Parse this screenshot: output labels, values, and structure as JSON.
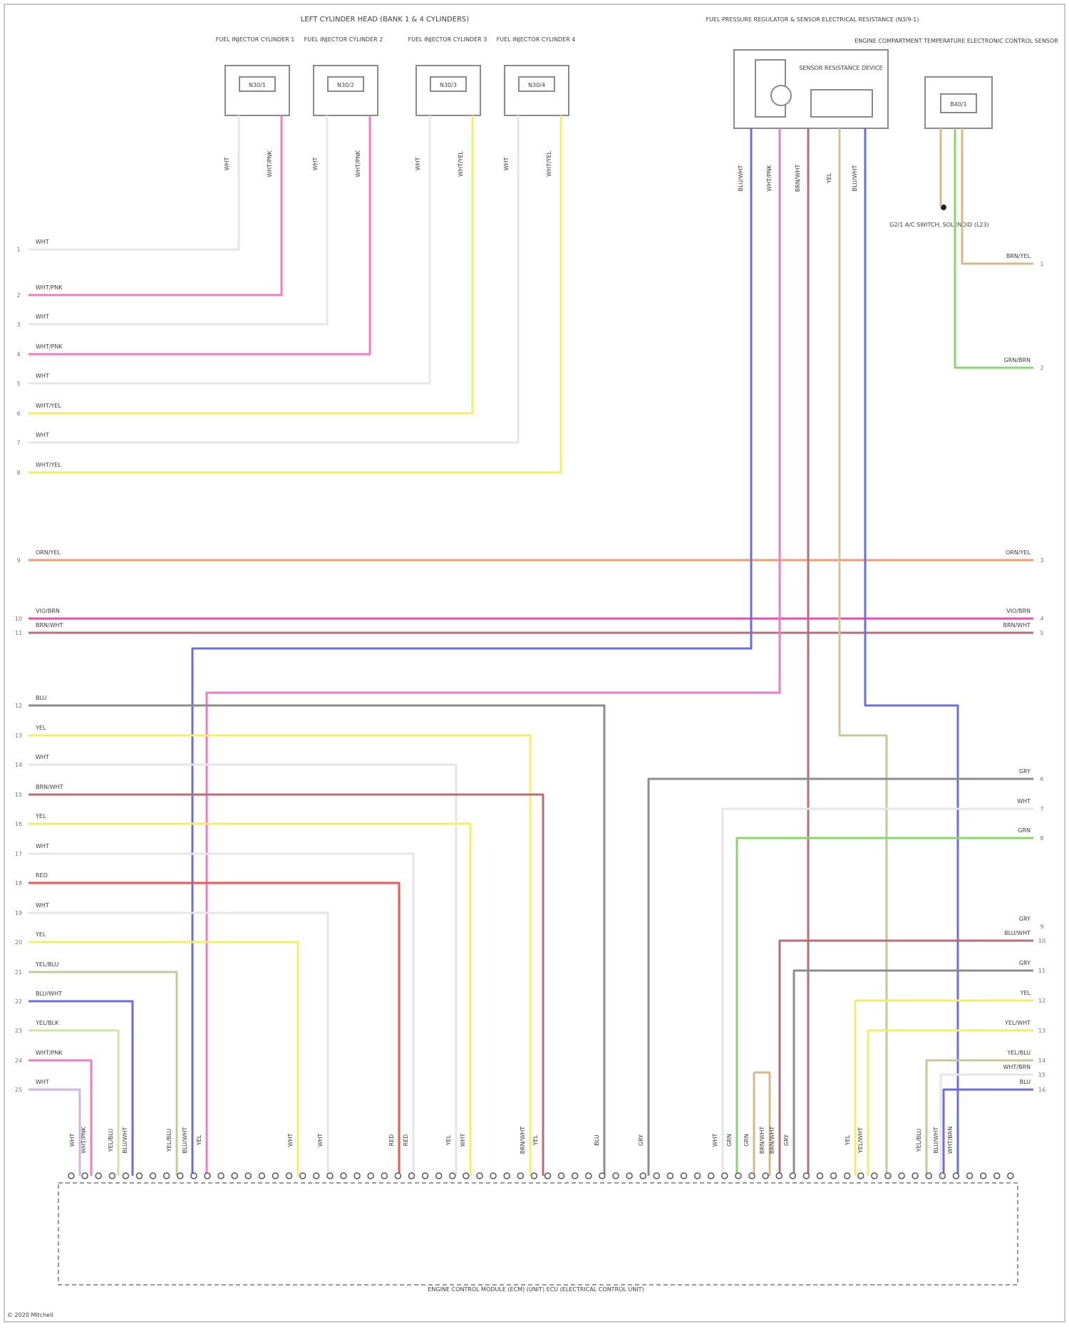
{
  "title_top": "LEFT CYLINDER HEAD (BANK 1 & 4 CYLINDERS)",
  "injectors": [
    {
      "label": "FUEL INJECTOR CYLINDER 1",
      "code": "N30/1"
    },
    {
      "label": "FUEL INJECTOR CYLINDER 2",
      "code": "N30/2"
    },
    {
      "label": "FUEL INJECTOR CYLINDER 3",
      "code": "N30/3"
    },
    {
      "label": "FUEL INJECTOR CYLINDER 4",
      "code": "N30/4"
    }
  ],
  "right_component": {
    "label": "FUEL PRESSURE REGULATOR & SENSOR ELECTRICAL RESISTANCE (N3/9-1)",
    "inner": "SENSOR RESISTANCE DEVICE"
  },
  "far_right_component": {
    "label": "ENGINE COMPARTMENT TEMPERATURE ELECTRONIC CONTROL SENSOR",
    "inner": "B40/1",
    "ground_note": "G2/1 A/C SWITCH, SOLENOID (L23)"
  },
  "ecu_label": "ENGINE CONTROL MODULE (ECM) (UNIT) ECU (ELECTRICAL CONTROL UNIT)",
  "footer": "© 2020 Mitchell",
  "wire_colors": {
    "white": "#e6e6e6",
    "pink": "#f27cc4",
    "yellow": "#f2ee6a",
    "orange": "#f59a70",
    "magenta": "#ea4fb0",
    "brown": "#b86e78",
    "blue": "#6b6ee0",
    "gray": "#8c8c8c",
    "red": "#e85a5a",
    "green": "#8ad66e",
    "olive": "#c9c79a",
    "lightgreen": "#cde6a8",
    "tan": "#d7b88a",
    "lavender": "#cfb4e6"
  },
  "left_wires": [
    {
      "num": "1",
      "label": "WHT",
      "color": "white"
    },
    {
      "num": "2",
      "label": "WHT/PNK",
      "color": "pink"
    },
    {
      "num": "3",
      "label": "WHT",
      "color": "white"
    },
    {
      "num": "4",
      "label": "WHT/PNK",
      "color": "pink"
    },
    {
      "num": "5",
      "label": "WHT",
      "color": "white"
    },
    {
      "num": "6",
      "label": "WHT/YEL",
      "color": "yellow"
    },
    {
      "num": "7",
      "label": "WHT",
      "color": "white"
    },
    {
      "num": "8",
      "label": "WHT/YEL",
      "color": "yellow"
    },
    {
      "num": "9",
      "label": "ORN/YEL",
      "color": "orange"
    },
    {
      "num": "10",
      "label": "VIO/BRN",
      "color": "magenta"
    },
    {
      "num": "11",
      "label": "BRN/WHT",
      "color": "brown"
    },
    {
      "num": "12",
      "label": "BLU",
      "color": "gray"
    },
    {
      "num": "13",
      "label": "YEL",
      "color": "yellow"
    },
    {
      "num": "14",
      "label": "WHT",
      "color": "white"
    },
    {
      "num": "15",
      "label": "BRN/WHT",
      "color": "brown"
    },
    {
      "num": "16",
      "label": "YEL",
      "color": "yellow"
    },
    {
      "num": "17",
      "label": "WHT",
      "color": "white"
    },
    {
      "num": "18",
      "label": "RED",
      "color": "red"
    },
    {
      "num": "19",
      "label": "WHT",
      "color": "white"
    },
    {
      "num": "20",
      "label": "YEL",
      "color": "yellow"
    },
    {
      "num": "21",
      "label": "YEL/BLU",
      "color": "olive"
    },
    {
      "num": "22",
      "label": "BLU/WHT",
      "color": "blue"
    },
    {
      "num": "23",
      "label": "YEL/BLK",
      "color": "lightgreen"
    },
    {
      "num": "24",
      "label": "WHT/PNK",
      "color": "pink"
    },
    {
      "num": "25",
      "label": "WHT",
      "color": "lavender"
    }
  ],
  "right_wires": [
    {
      "num": "1",
      "label": "BRN/YEL",
      "color": "tan"
    },
    {
      "num": "2",
      "label": "GRN/BRN",
      "color": "green"
    },
    {
      "num": "3",
      "label": "ORN/YEL",
      "color": "orange"
    },
    {
      "num": "4",
      "label": "VIO/BRN",
      "color": "magenta"
    },
    {
      "num": "5",
      "label": "BRN/WHT",
      "color": "brown"
    },
    {
      "num": "6",
      "label": "GRY",
      "color": "gray"
    },
    {
      "num": "7",
      "label": "WHT",
      "color": "white"
    },
    {
      "num": "8",
      "label": "GRN",
      "color": "green"
    },
    {
      "num": "9",
      "label": "GRY",
      "color": "white"
    },
    {
      "num": "10",
      "label": "BLU/WHT",
      "color": "brown"
    },
    {
      "num": "11",
      "label": "GRY",
      "color": "gray"
    },
    {
      "num": "12",
      "label": "YEL",
      "color": "yellow"
    },
    {
      "num": "13",
      "label": "YEL/WHT",
      "color": "yellow"
    },
    {
      "num": "14",
      "label": "YEL/BLU",
      "color": "olive"
    },
    {
      "num": "15",
      "label": "WHT/BRN",
      "color": "white"
    },
    {
      "num": "16",
      "label": "BLU",
      "color": "blue"
    }
  ],
  "top_right_wire_labels": [
    "BLU/WHT",
    "WHT/PNK",
    "BRN/WHT",
    "YEL",
    "BLU/WHT"
  ],
  "bottom_pin_labels": [
    "WHT",
    "WHT/PNK",
    "YEL/BLU",
    "BLU/WHT",
    "YEL/BLU",
    "BLU/WHT",
    "YEL",
    "WHT",
    "WHT",
    "RED",
    "RED",
    "YEL",
    "WHT",
    "BRN/WHT",
    "YEL",
    "BLU",
    "GRY",
    "WHT",
    "GRN",
    "GRN",
    "BRN/WHT",
    "BRN/WHT",
    "GRY",
    "YEL",
    "YEL/WHT",
    "YEL/BLU",
    "BLU/WHT",
    "WHT/BRN"
  ]
}
